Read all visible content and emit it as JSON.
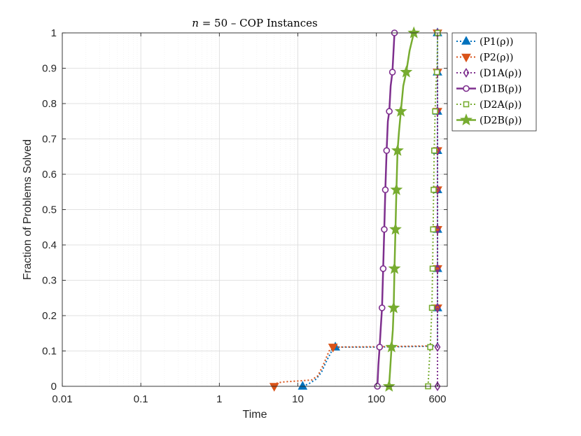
{
  "chart_data": {
    "type": "line",
    "title": "n = 50 – COP Instances",
    "title_parts": {
      "var": "n",
      "rest": " = 50 – COP Instances"
    },
    "xlabel": "Time",
    "ylabel": "Fraction of Problems Solved",
    "xscale": "log",
    "xlim": [
      0.01,
      800
    ],
    "ylim": [
      0,
      1
    ],
    "x_ticks": [
      0.01,
      0.1,
      1,
      10,
      100,
      600
    ],
    "x_tick_labels": [
      "0.01",
      "0.1",
      "1",
      "10",
      "100",
      "600"
    ],
    "y_ticks": [
      0,
      0.1,
      0.2,
      0.3,
      0.4,
      0.5,
      0.6,
      0.7,
      0.8,
      0.9,
      1
    ],
    "y_tick_labels": [
      "0",
      "0.1",
      "0.2",
      "0.3",
      "0.4",
      "0.5",
      "0.6",
      "0.7",
      "0.8",
      "0.9",
      "1"
    ],
    "grid": true,
    "legend_position": "outside-top-right",
    "series": [
      {
        "name": "(P1(ρ))",
        "color": "#0072BD",
        "style": "dotted",
        "marker": "triangle-up",
        "width": 2,
        "x": [
          11.5,
          14,
          17,
          20,
          23,
          27,
          30,
          100,
          200,
          400,
          600,
          600,
          600,
          600,
          600,
          600,
          600,
          600,
          600
        ],
        "y": [
          0,
          0.008,
          0.02,
          0.04,
          0.07,
          0.1,
          0.111,
          0.111,
          0.112,
          0.113,
          0.115,
          0.222,
          0.333,
          0.444,
          0.556,
          0.667,
          0.778,
          0.889,
          1.0
        ],
        "marker_x": [
          11.5,
          30,
          600,
          600,
          600,
          600,
          600,
          600,
          600,
          600
        ],
        "marker_y": [
          0,
          0.111,
          0.222,
          0.333,
          0.444,
          0.556,
          0.667,
          0.778,
          0.889,
          1.0
        ]
      },
      {
        "name": "(P2(ρ))",
        "color": "#D95319",
        "style": "dotted",
        "marker": "triangle-down",
        "width": 2,
        "x": [
          5,
          5.5,
          7,
          10,
          15,
          18,
          21,
          25,
          28,
          100,
          200,
          400,
          600,
          600,
          600,
          600,
          600,
          600,
          600,
          600,
          600
        ],
        "y": [
          0,
          0.01,
          0.013,
          0.015,
          0.018,
          0.03,
          0.06,
          0.1,
          0.111,
          0.112,
          0.113,
          0.114,
          0.115,
          0.222,
          0.333,
          0.444,
          0.556,
          0.667,
          0.778,
          0.889,
          1.0
        ],
        "marker_x": [
          5,
          28,
          600,
          600,
          600,
          600,
          600,
          600,
          600,
          600
        ],
        "marker_y": [
          0,
          0.111,
          0.222,
          0.333,
          0.444,
          0.556,
          0.667,
          0.778,
          0.889,
          1.0
        ]
      },
      {
        "name": "(D1A(ρ))",
        "color": "#7E2F8E",
        "style": "dotted",
        "marker": "diamond",
        "width": 2,
        "x": [
          600,
          600,
          600,
          600,
          600,
          600,
          600,
          600,
          600,
          600
        ],
        "y": [
          0,
          0.111,
          0.222,
          0.333,
          0.444,
          0.556,
          0.667,
          0.778,
          0.889,
          1.0
        ],
        "marker_x": [
          600,
          600,
          600,
          600,
          600,
          600,
          600,
          600,
          600,
          600
        ],
        "marker_y": [
          0,
          0.111,
          0.222,
          0.333,
          0.444,
          0.556,
          0.667,
          0.778,
          0.889,
          1.0
        ]
      },
      {
        "name": "(D1B(ρ))",
        "color": "#7E2F8E",
        "style": "solid",
        "marker": "circle",
        "width": 2.5,
        "x": [
          103,
          106,
          110,
          114,
          118,
          122,
          126,
          130,
          135,
          140,
          146,
          152,
          160,
          170
        ],
        "y": [
          0,
          0.06,
          0.111,
          0.17,
          0.222,
          0.333,
          0.444,
          0.556,
          0.667,
          0.75,
          0.778,
          0.85,
          0.889,
          1.0
        ],
        "marker_x": [
          103,
          110,
          118,
          122,
          126,
          130,
          135,
          146,
          160,
          170
        ],
        "marker_y": [
          0,
          0.111,
          0.222,
          0.333,
          0.444,
          0.556,
          0.667,
          0.778,
          0.889,
          1.0
        ]
      },
      {
        "name": "(D2A(ρ))",
        "color": "#77AC30",
        "style": "dotted",
        "marker": "square",
        "width": 2,
        "x": [
          455,
          470,
          485,
          498,
          510,
          520,
          528,
          536,
          545,
          560,
          572,
          590,
          603
        ],
        "y": [
          0,
          0.06,
          0.111,
          0.17,
          0.222,
          0.333,
          0.444,
          0.556,
          0.667,
          0.778,
          0.85,
          0.889,
          1.0
        ],
        "marker_x": [
          455,
          485,
          510,
          520,
          528,
          536,
          545,
          560,
          590,
          603
        ],
        "marker_y": [
          0,
          0.111,
          0.222,
          0.333,
          0.444,
          0.556,
          0.667,
          0.778,
          0.889,
          1.0
        ]
      },
      {
        "name": "(D2B(ρ))",
        "color": "#77AC30",
        "style": "solid",
        "marker": "star",
        "width": 2.5,
        "x": [
          145,
          150,
          156,
          162,
          166,
          170,
          175,
          180,
          186,
          194,
          205,
          220,
          240,
          265,
          300
        ],
        "y": [
          0,
          0.05,
          0.111,
          0.16,
          0.222,
          0.333,
          0.444,
          0.556,
          0.667,
          0.72,
          0.778,
          0.85,
          0.889,
          0.95,
          1.0
        ],
        "marker_x": [
          145,
          156,
          166,
          170,
          175,
          180,
          186,
          205,
          240,
          300
        ],
        "marker_y": [
          0,
          0.111,
          0.222,
          0.333,
          0.444,
          0.556,
          0.667,
          0.778,
          0.889,
          1.0
        ]
      }
    ]
  }
}
